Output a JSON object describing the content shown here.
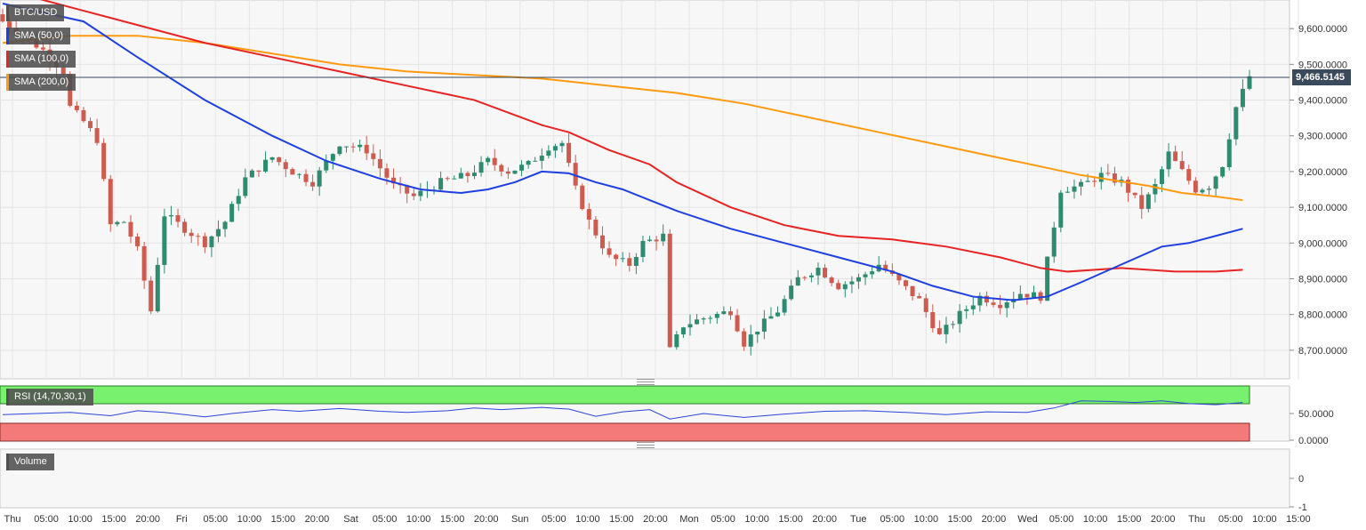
{
  "chart_data": [
    {
      "type": "candlestick",
      "title": "BTC/USD",
      "last_price_label": "9,466.5145",
      "ylim": [
        8620,
        9680
      ],
      "y_ticks": [
        {
          "v": 9600,
          "label": "9,600.0000"
        },
        {
          "v": 9500,
          "label": "9,500.0000"
        },
        {
          "v": 9400,
          "label": "9,400.0000"
        },
        {
          "v": 9300,
          "label": "9,300.0000"
        },
        {
          "v": 9200,
          "label": "9,200.0000"
        },
        {
          "v": 9100,
          "label": "9,100.0000"
        },
        {
          "v": 9000,
          "label": "9,000.0000"
        },
        {
          "v": 8900,
          "label": "8,900.0000"
        },
        {
          "v": 8800,
          "label": "8,800.0000"
        },
        {
          "v": 8700,
          "label": "8,700.0000"
        }
      ],
      "x_ticks": [
        "Thu",
        "05:00",
        "10:00",
        "15:00",
        "20:00",
        "Fri",
        "05:00",
        "10:00",
        "15:00",
        "20:00",
        "Sat",
        "05:00",
        "10:00",
        "15:00",
        "20:00",
        "Sun",
        "05:00",
        "10:00",
        "15:00",
        "20:00",
        "Mon",
        "05:00",
        "10:00",
        "15:00",
        "20:00",
        "Tue",
        "05:00",
        "10:00",
        "15:00",
        "20:00",
        "Wed",
        "05:00",
        "10:00",
        "15:00",
        "20:00",
        "Thu",
        "05:00",
        "10:00",
        "15:00"
      ],
      "grid": true,
      "legend": [
        {
          "label": "BTC/USD",
          "color": "#4e4e4e"
        },
        {
          "label": "SMA (50,0)",
          "color": "#1f3fe0"
        },
        {
          "label": "SMA (100,0)",
          "color": "#e82323"
        },
        {
          "label": "SMA (200,0)",
          "color": "#ff9a10"
        }
      ],
      "up_color": "#2e8b6f",
      "down_color": "#cd5b4f",
      "candle_anchors": [
        {
          "i": 0,
          "close": 9620
        },
        {
          "i": 3,
          "close": 9580
        },
        {
          "i": 6,
          "close": 9540
        },
        {
          "i": 9,
          "close": 9480
        },
        {
          "i": 10,
          "close": 9380
        },
        {
          "i": 12,
          "close": 9340
        },
        {
          "i": 14,
          "close": 9290
        },
        {
          "i": 16,
          "close": 9050
        },
        {
          "i": 18,
          "close": 9060
        },
        {
          "i": 20,
          "close": 8980
        },
        {
          "i": 22,
          "close": 8810
        },
        {
          "i": 24,
          "close": 9080
        },
        {
          "i": 27,
          "close": 9040
        },
        {
          "i": 30,
          "close": 9000
        },
        {
          "i": 33,
          "close": 9060
        },
        {
          "i": 36,
          "close": 9180
        },
        {
          "i": 40,
          "close": 9240
        },
        {
          "i": 43,
          "close": 9200
        },
        {
          "i": 46,
          "close": 9170
        },
        {
          "i": 50,
          "close": 9280
        },
        {
          "i": 54,
          "close": 9260
        },
        {
          "i": 58,
          "close": 9160
        },
        {
          "i": 61,
          "close": 9130
        },
        {
          "i": 65,
          "close": 9170
        },
        {
          "i": 69,
          "close": 9190
        },
        {
          "i": 72,
          "close": 9230
        },
        {
          "i": 75,
          "close": 9200
        },
        {
          "i": 78,
          "close": 9220
        },
        {
          "i": 81,
          "close": 9270
        },
        {
          "i": 83,
          "close": 9280
        },
        {
          "i": 85,
          "close": 9150
        },
        {
          "i": 87,
          "close": 9060
        },
        {
          "i": 90,
          "close": 8960
        },
        {
          "i": 93,
          "close": 8940
        },
        {
          "i": 95,
          "close": 9000
        },
        {
          "i": 98,
          "close": 9020
        },
        {
          "i": 99,
          "close": 8700
        },
        {
          "i": 101,
          "close": 8770
        },
        {
          "i": 104,
          "close": 8790
        },
        {
          "i": 106,
          "close": 8800
        },
        {
          "i": 108,
          "close": 8810
        },
        {
          "i": 110,
          "close": 8720
        },
        {
          "i": 112,
          "close": 8760
        },
        {
          "i": 115,
          "close": 8810
        },
        {
          "i": 118,
          "close": 8900
        },
        {
          "i": 121,
          "close": 8930
        },
        {
          "i": 124,
          "close": 8880
        },
        {
          "i": 127,
          "close": 8900
        },
        {
          "i": 130,
          "close": 8940
        },
        {
          "i": 133,
          "close": 8890
        },
        {
          "i": 136,
          "close": 8840
        },
        {
          "i": 139,
          "close": 8740
        },
        {
          "i": 142,
          "close": 8800
        },
        {
          "i": 145,
          "close": 8850
        },
        {
          "i": 148,
          "close": 8830
        },
        {
          "i": 151,
          "close": 8860
        },
        {
          "i": 154,
          "close": 8850
        },
        {
          "i": 157,
          "close": 9150
        },
        {
          "i": 160,
          "close": 9160
        },
        {
          "i": 163,
          "close": 9190
        },
        {
          "i": 166,
          "close": 9170
        },
        {
          "i": 169,
          "close": 9100
        },
        {
          "i": 171,
          "close": 9160
        },
        {
          "i": 173,
          "close": 9250
        },
        {
          "i": 175,
          "close": 9200
        },
        {
          "i": 177,
          "close": 9150
        },
        {
          "i": 179,
          "close": 9160
        },
        {
          "i": 181,
          "close": 9220
        },
        {
          "i": 183,
          "close": 9380
        },
        {
          "i": 185,
          "close": 9466.5
        }
      ],
      "sma_50": [
        [
          0,
          9670
        ],
        [
          12,
          9620
        ],
        [
          20,
          9520
        ],
        [
          30,
          9400
        ],
        [
          40,
          9300
        ],
        [
          48,
          9230
        ],
        [
          56,
          9180
        ],
        [
          62,
          9150
        ],
        [
          68,
          9140
        ],
        [
          72,
          9150
        ],
        [
          76,
          9170
        ],
        [
          80,
          9200
        ],
        [
          84,
          9195
        ],
        [
          88,
          9170
        ],
        [
          92,
          9150
        ],
        [
          96,
          9120
        ],
        [
          100,
          9090
        ],
        [
          108,
          9040
        ],
        [
          116,
          9000
        ],
        [
          124,
          8960
        ],
        [
          132,
          8920
        ],
        [
          138,
          8880
        ],
        [
          144,
          8850
        ],
        [
          150,
          8840
        ],
        [
          155,
          8850
        ],
        [
          160,
          8890
        ],
        [
          166,
          8940
        ],
        [
          172,
          8990
        ],
        [
          176,
          9000
        ],
        [
          180,
          9020
        ],
        [
          184,
          9040
        ]
      ],
      "sma_100": [
        [
          0,
          9710
        ],
        [
          12,
          9650
        ],
        [
          20,
          9610
        ],
        [
          30,
          9560
        ],
        [
          40,
          9520
        ],
        [
          50,
          9480
        ],
        [
          60,
          9440
        ],
        [
          70,
          9400
        ],
        [
          80,
          9330
        ],
        [
          84,
          9310
        ],
        [
          90,
          9260
        ],
        [
          96,
          9220
        ],
        [
          100,
          9170
        ],
        [
          108,
          9100
        ],
        [
          116,
          9050
        ],
        [
          124,
          9020
        ],
        [
          132,
          9010
        ],
        [
          140,
          8990
        ],
        [
          148,
          8960
        ],
        [
          154,
          8930
        ],
        [
          158,
          8920
        ],
        [
          166,
          8930
        ],
        [
          174,
          8920
        ],
        [
          180,
          8920
        ],
        [
          184,
          8925
        ]
      ],
      "sma_200": [
        [
          0,
          9560
        ],
        [
          10,
          9580
        ],
        [
          20,
          9580
        ],
        [
          30,
          9560
        ],
        [
          40,
          9530
        ],
        [
          50,
          9500
        ],
        [
          60,
          9480
        ],
        [
          70,
          9470
        ],
        [
          80,
          9460
        ],
        [
          90,
          9440
        ],
        [
          100,
          9420
        ],
        [
          110,
          9390
        ],
        [
          120,
          9350
        ],
        [
          130,
          9310
        ],
        [
          140,
          9270
        ],
        [
          150,
          9230
        ],
        [
          160,
          9190
        ],
        [
          170,
          9160
        ],
        [
          175,
          9140
        ],
        [
          180,
          9130
        ],
        [
          184,
          9120
        ]
      ]
    },
    {
      "type": "line",
      "title": "RSI (14,70,30,1)",
      "ylim": [
        0,
        100
      ],
      "y_ticks": [
        {
          "v": 50,
          "label": "50.0000"
        },
        {
          "v": 0,
          "label": "0.0000"
        }
      ],
      "overbought": 70,
      "oversold": 30,
      "overbought_color": "#78f26e",
      "oversold_color": "#f47a7a",
      "line_color": "#2b45d8",
      "values": [
        [
          0,
          48
        ],
        [
          10,
          52
        ],
        [
          16,
          46
        ],
        [
          20,
          55
        ],
        [
          24,
          52
        ],
        [
          30,
          44
        ],
        [
          34,
          50
        ],
        [
          40,
          57
        ],
        [
          44,
          54
        ],
        [
          50,
          59
        ],
        [
          56,
          54
        ],
        [
          60,
          52
        ],
        [
          66,
          55
        ],
        [
          70,
          60
        ],
        [
          74,
          57
        ],
        [
          80,
          61
        ],
        [
          84,
          58
        ],
        [
          88,
          45
        ],
        [
          92,
          53
        ],
        [
          96,
          57
        ],
        [
          99,
          40
        ],
        [
          104,
          50
        ],
        [
          110,
          43
        ],
        [
          116,
          49
        ],
        [
          122,
          54
        ],
        [
          128,
          55
        ],
        [
          134,
          52
        ],
        [
          140,
          48
        ],
        [
          146,
          53
        ],
        [
          152,
          52
        ],
        [
          156,
          60
        ],
        [
          160,
          73
        ],
        [
          164,
          72
        ],
        [
          168,
          70
        ],
        [
          172,
          73
        ],
        [
          176,
          68
        ],
        [
          180,
          66
        ],
        [
          184,
          70
        ]
      ]
    },
    {
      "type": "bar",
      "title": "Volume",
      "ylim": [
        -1,
        1
      ],
      "y_ticks": [
        {
          "v": 0,
          "label": "0"
        },
        {
          "v": -1,
          "label": "-1"
        }
      ],
      "values": []
    }
  ]
}
